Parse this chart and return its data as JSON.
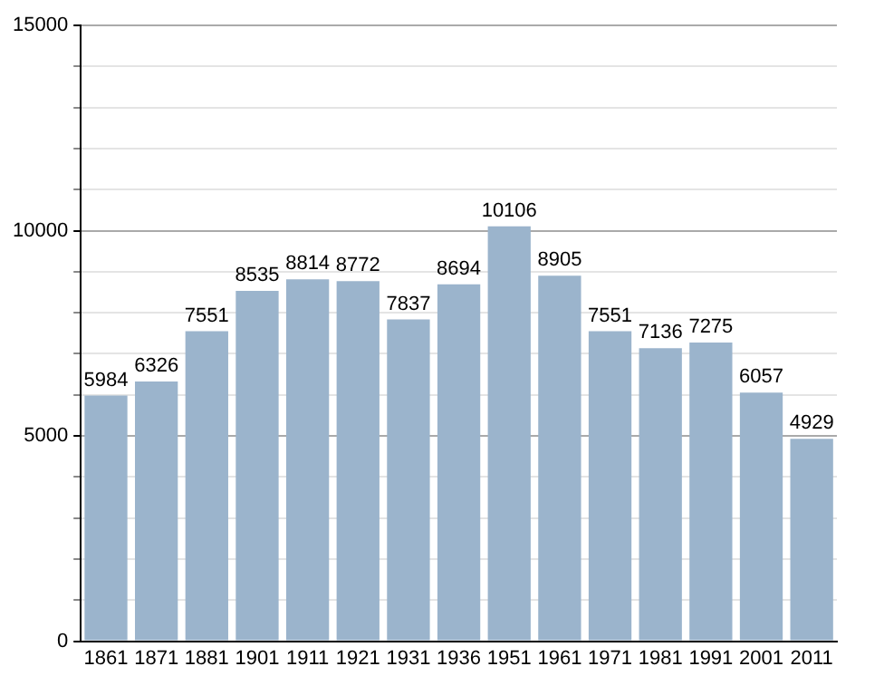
{
  "chart_data": {
    "type": "bar",
    "categories": [
      "1861",
      "1871",
      "1881",
      "1901",
      "1911",
      "1921",
      "1931",
      "1936",
      "1951",
      "1961",
      "1971",
      "1981",
      "1991",
      "2001",
      "2011"
    ],
    "values": [
      5984,
      6326,
      7551,
      8535,
      8814,
      8772,
      7837,
      8694,
      10106,
      8905,
      7551,
      7136,
      7275,
      6057,
      4929
    ],
    "color": "#9bb4cc",
    "ylim": [
      0,
      15000
    ],
    "yticks": [
      0,
      {
        "value": 1000,
        "label": null
      },
      {
        "value": 2000,
        "label": null
      },
      {
        "value": 3000,
        "label": null
      },
      {
        "value": 4000,
        "label": null
      },
      5000,
      {
        "value": 6000,
        "label": null
      },
      {
        "value": 7000,
        "label": null
      },
      {
        "value": 8000,
        "label": null
      },
      {
        "value": 9000,
        "label": null
      },
      10000,
      {
        "value": 11000,
        "label": null
      },
      {
        "value": 12000,
        "label": null
      },
      {
        "value": 13000,
        "label": null
      },
      {
        "value": 14000,
        "label": null
      },
      15000
    ],
    "grid": "y",
    "data_labels": true
  }
}
